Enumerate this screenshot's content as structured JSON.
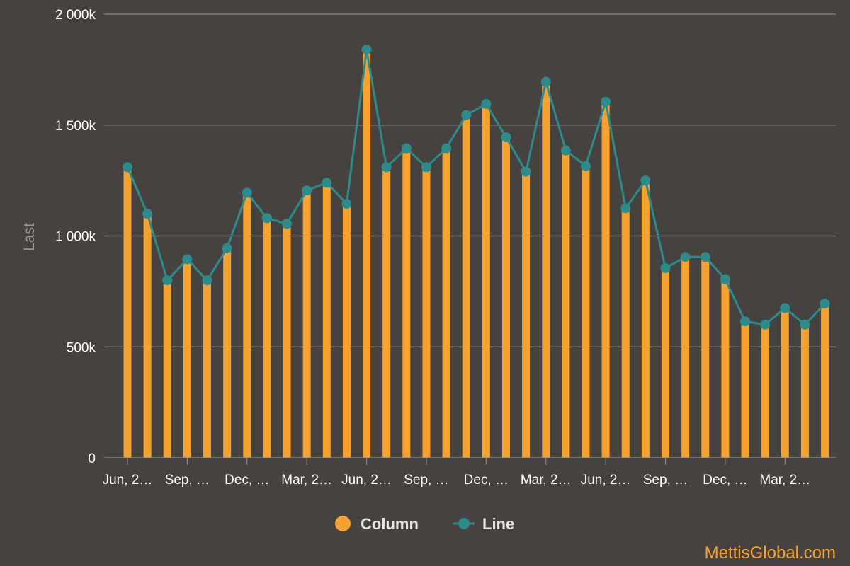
{
  "chart_data": {
    "type": "bar",
    "ylabel": "Last",
    "ylim": [
      0,
      2000000
    ],
    "y_ticks": [
      {
        "value": 0,
        "label": "0"
      },
      {
        "value": 500000,
        "label": "500k"
      },
      {
        "value": 1000000,
        "label": "1 000k"
      },
      {
        "value": 1500000,
        "label": "1 500k"
      },
      {
        "value": 2000000,
        "label": "2 000k"
      }
    ],
    "x_tick_labels": [
      "Jun, 2…",
      "Sep, …",
      "Dec, …",
      "Mar, 2…",
      "Jun, 2…",
      "Sep, …",
      "Dec, …",
      "Mar, 2…",
      "Jun, 2…",
      "Sep, …",
      "Dec, …",
      "Mar, 2…"
    ],
    "x_tick_every": 3,
    "grid": true,
    "legend_position": "bottom-center",
    "series": [
      {
        "name": "Column",
        "type": "bar",
        "color": "#f7a12f",
        "values": [
          1310000,
          1100000,
          800000,
          895000,
          800000,
          945000,
          1195000,
          1080000,
          1055000,
          1205000,
          1240000,
          1145000,
          1840000,
          1310000,
          1395000,
          1310000,
          1395000,
          1545000,
          1595000,
          1445000,
          1290000,
          1695000,
          1385000,
          1315000,
          1605000,
          1125000,
          1250000,
          855000,
          905000,
          905000,
          805000,
          615000,
          600000,
          675000,
          600000,
          695000
        ]
      },
      {
        "name": "Line",
        "type": "line",
        "color": "#2e8b8b",
        "values": [
          1310000,
          1100000,
          800000,
          895000,
          800000,
          945000,
          1195000,
          1080000,
          1055000,
          1205000,
          1240000,
          1145000,
          1840000,
          1310000,
          1395000,
          1310000,
          1395000,
          1545000,
          1595000,
          1445000,
          1290000,
          1695000,
          1385000,
          1315000,
          1605000,
          1125000,
          1250000,
          855000,
          905000,
          905000,
          805000,
          615000,
          600000,
          675000,
          600000,
          695000
        ]
      }
    ]
  },
  "legend": {
    "column_label": "Column",
    "line_label": "Line"
  },
  "credit": "MettisGlobal.com"
}
